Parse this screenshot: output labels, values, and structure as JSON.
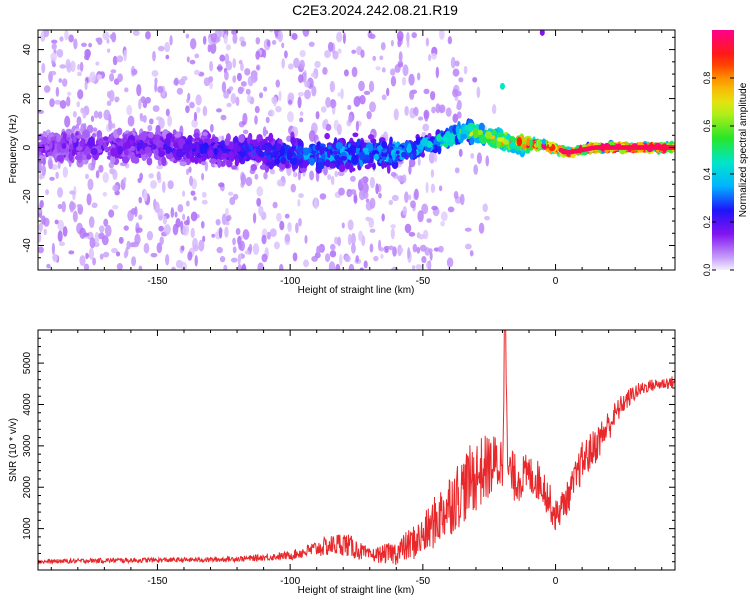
{
  "figure": {
    "title": "C2E3.2024.242.08.21.R19"
  },
  "chart_data": [
    {
      "type": "heatmap",
      "xlabel": "Height of straight line (km)",
      "ylabel": "Frequency (Hz)",
      "xlim": [
        -195,
        45
      ],
      "ylim": [
        -50,
        48
      ],
      "x_ticks": [
        -150,
        -100,
        -50,
        0
      ],
      "y_ticks": [
        -40,
        -20,
        0,
        20,
        40
      ],
      "colorbar": {
        "label": "Normalized spectral amplitude",
        "range": [
          0,
          1
        ],
        "ticks": [
          0.0,
          0.2,
          0.4,
          0.6,
          0.8
        ],
        "colormap": "rainbow-white-to-magenta"
      },
      "features": {
        "center_band": [
          {
            "x": -195,
            "y": 0.5,
            "amp": 0.15
          },
          {
            "x": -150,
            "y": 0.5,
            "amp": 0.18
          },
          {
            "x": -110,
            "y": -2.0,
            "amp": 0.25
          },
          {
            "x": -90,
            "y": -3.0,
            "amp": 0.32
          },
          {
            "x": -70,
            "y": -2.5,
            "amp": 0.36
          },
          {
            "x": -55,
            "y": -1.0,
            "amp": 0.36
          },
          {
            "x": -45,
            "y": 2.0,
            "amp": 0.45
          },
          {
            "x": -33,
            "y": 7.0,
            "amp": 0.55
          },
          {
            "x": -25,
            "y": 4.0,
            "amp": 0.65
          },
          {
            "x": -15,
            "y": 2.0,
            "amp": 0.8
          },
          {
            "x": -5,
            "y": 1.0,
            "amp": 0.85
          },
          {
            "x": 5,
            "y": -2.0,
            "amp": 0.9
          },
          {
            "x": 15,
            "y": 0.0,
            "amp": 0.95
          },
          {
            "x": 45,
            "y": 0.0,
            "amp": 0.98
          }
        ],
        "isolated_spots": [
          {
            "x": -20,
            "y": 25,
            "amp": 0.45
          },
          {
            "x": -5,
            "y": 47,
            "amp": 0.15
          }
        ]
      }
    },
    {
      "type": "line",
      "xlabel": "Height of straight line (km)",
      "ylabel": "SNR (10 * v/v)",
      "xlim": [
        -195,
        45
      ],
      "ylim": [
        0,
        5800
      ],
      "x_ticks": [
        -150,
        -100,
        -50,
        0
      ],
      "y_ticks": [
        1000,
        2000,
        3000,
        4000,
        5000
      ],
      "color": "#e8282b",
      "series": [
        {
          "x": [
            -195,
            -170,
            -150,
            -130,
            -115,
            -100,
            -90,
            -80,
            -75,
            -70,
            -60,
            -50,
            -40,
            -30,
            -25,
            -20,
            -19,
            -18,
            -15,
            -10,
            -5,
            0,
            5,
            10,
            15,
            20,
            25,
            30,
            35,
            40,
            45
          ],
          "y": [
            200,
            230,
            240,
            250,
            280,
            350,
            520,
            650,
            500,
            350,
            420,
            800,
            1600,
            2300,
            2500,
            2600,
            5800,
            2400,
            2200,
            2300,
            2100,
            1300,
            1800,
            2600,
            3000,
            3500,
            4000,
            4300,
            4450,
            4500,
            4550
          ],
          "noise": [
            50,
            60,
            60,
            60,
            70,
            100,
            200,
            300,
            250,
            150,
            300,
            500,
            800,
            900,
            800,
            700,
            0,
            600,
            600,
            500,
            500,
            400,
            400,
            500,
            450,
            400,
            250,
            200,
            150,
            150,
            150
          ]
        }
      ]
    }
  ]
}
